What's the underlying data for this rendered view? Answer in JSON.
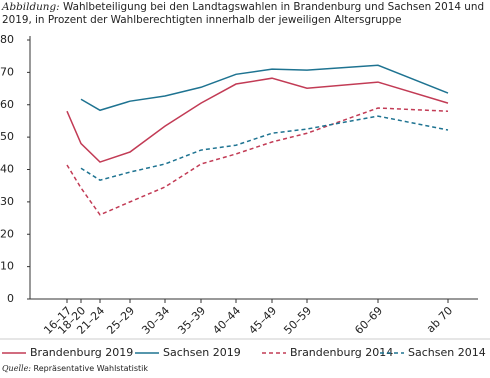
{
  "chart_data": {
    "type": "line",
    "title_prefix": "Abbildung:",
    "title": "Wahlbeteiligung bei den Landtagswahlen in Brandenburg und Sachsen 2014 und 2019, in Prozent der Wahlberechtigten innerhalb der jeweiligen Altersgruppe",
    "categories": [
      "16–17",
      "18–20",
      "21–24",
      "25–29",
      "30–34",
      "35–39",
      "40–44",
      "45–49",
      "50–59",
      "60–69",
      "ab 70"
    ],
    "series": [
      {
        "name": "Brandenburg 2019",
        "color": "#c23b55",
        "dashed": false,
        "values": [
          58,
          48,
          42.3,
          45.4,
          53.4,
          60.5,
          66.4,
          68.2,
          65.1,
          67,
          60.5
        ]
      },
      {
        "name": "Sachsen 2019",
        "color": "#1e7391",
        "dashed": false,
        "values": [
          null,
          61.7,
          58.3,
          61.1,
          62.7,
          65.4,
          69.4,
          71,
          70.7,
          72.2,
          63.6
        ]
      },
      {
        "name": "Brandenburg 2014",
        "color": "#c23b55",
        "dashed": true,
        "values": [
          41.4,
          34.3,
          26,
          30,
          34.6,
          41.7,
          44.8,
          48.5,
          51.2,
          59,
          58
        ]
      },
      {
        "name": "Sachsen 2014",
        "color": "#1e7391",
        "dashed": true,
        "values": [
          null,
          40.4,
          36.7,
          39.2,
          41.7,
          46,
          47.5,
          51.2,
          52.5,
          56.5,
          52.2
        ]
      }
    ],
    "ylim": [
      0,
      80
    ],
    "yticks": [
      0,
      10,
      20,
      30,
      40,
      50,
      60,
      70,
      80
    ],
    "grid": false,
    "source_prefix": "Quelle:",
    "source": "Repräsentative Wahlstatistik"
  }
}
